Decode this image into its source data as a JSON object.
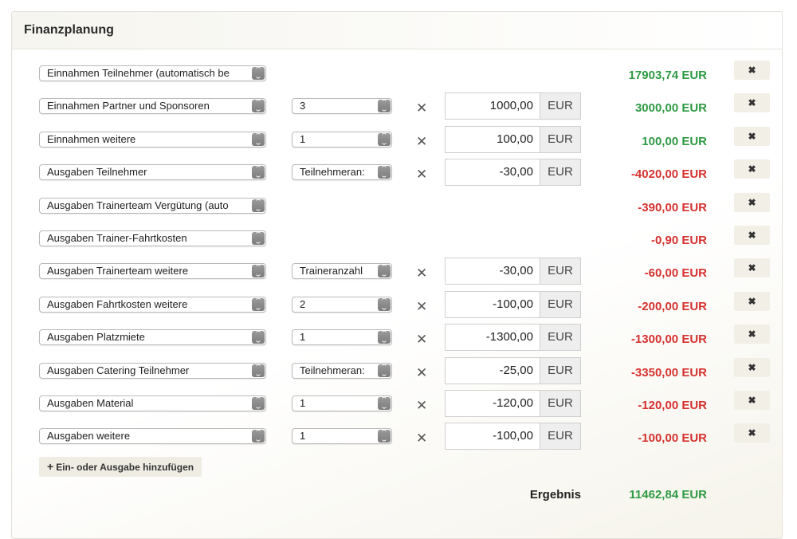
{
  "panel": {
    "title": "Finanzplanung",
    "add_button_label": "Ein- oder Ausgabe hinzufügen",
    "result_label": "Ergebnis",
    "result_value": "11462,84 EUR"
  },
  "colors": {
    "positive": "#2e9a44",
    "negative": "#d6312f"
  },
  "icons": {
    "remove": "close-icon",
    "add": "plus-icon",
    "select_arrow": "chevron-up-down-icon",
    "multiply": "times-icon"
  },
  "rows": [
    {
      "category": "Einnahmen Teilnehmer (automatisch be",
      "quantity": null,
      "price": null,
      "unit": null,
      "amount": "17903,74 EUR",
      "sign": "pos"
    },
    {
      "category": "Einnahmen Partner und Sponsoren",
      "quantity": "3",
      "price": "1000,00",
      "unit": "EUR",
      "amount": "3000,00 EUR",
      "sign": "pos"
    },
    {
      "category": "Einnahmen weitere",
      "quantity": "1",
      "price": "100,00",
      "unit": "EUR",
      "amount": "100,00 EUR",
      "sign": "pos"
    },
    {
      "category": "Ausgaben Teilnehmer",
      "quantity": "Teilnehmeran:",
      "price": "-30,00",
      "unit": "EUR",
      "amount": "-4020,00 EUR",
      "sign": "neg"
    },
    {
      "category": "Ausgaben Trainerteam Vergütung (auto",
      "quantity": null,
      "price": null,
      "unit": null,
      "amount": "-390,00 EUR",
      "sign": "neg"
    },
    {
      "category": "Ausgaben Trainer-Fahrtkosten",
      "quantity": null,
      "price": null,
      "unit": null,
      "amount": "-0,90 EUR",
      "sign": "neg"
    },
    {
      "category": "Ausgaben Trainerteam weitere",
      "quantity": "Traineranzahl",
      "price": "-30,00",
      "unit": "EUR",
      "amount": "-60,00 EUR",
      "sign": "neg"
    },
    {
      "category": "Ausgaben Fahrtkosten weitere",
      "quantity": "2",
      "price": "-100,00",
      "unit": "EUR",
      "amount": "-200,00 EUR",
      "sign": "neg"
    },
    {
      "category": "Ausgaben Platzmiete",
      "quantity": "1",
      "price": "-1300,00",
      "unit": "EUR",
      "amount": "-1300,00 EUR",
      "sign": "neg"
    },
    {
      "category": "Ausgaben Catering Teilnehmer",
      "quantity": "Teilnehmeran:",
      "price": "-25,00",
      "unit": "EUR",
      "amount": "-3350,00 EUR",
      "sign": "neg"
    },
    {
      "category": "Ausgaben Material",
      "quantity": "1",
      "price": "-120,00",
      "unit": "EUR",
      "amount": "-120,00 EUR",
      "sign": "neg"
    },
    {
      "category": "Ausgaben weitere",
      "quantity": "1",
      "price": "-100,00",
      "unit": "EUR",
      "amount": "-100,00 EUR",
      "sign": "neg"
    }
  ]
}
